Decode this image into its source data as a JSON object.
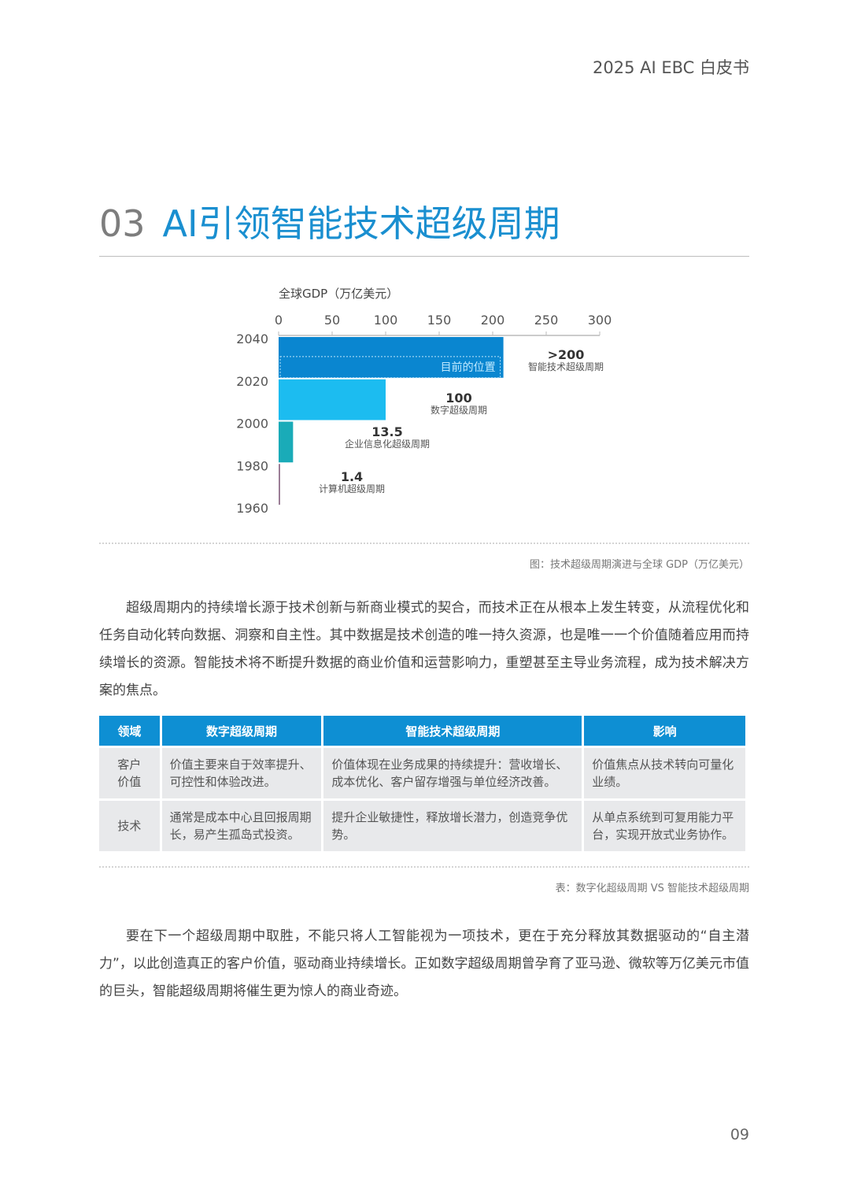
{
  "header": {
    "title": "2025 AI EBC 白皮书"
  },
  "section": {
    "number": "03",
    "title": "AI引领智能技术超级周期"
  },
  "chart_data": {
    "type": "bar",
    "orientation": "horizontal",
    "xlabel": "全球GDP（万亿美元）",
    "xlim": [
      0,
      300
    ],
    "xticks": [
      0,
      50,
      100,
      150,
      200,
      250,
      300
    ],
    "yticks": [
      "2040",
      "2020",
      "2000",
      "1980",
      "1960"
    ],
    "series": [
      {
        "name": "智能技术超级周期",
        "period": [
          2020,
          2040
        ],
        "value": 210,
        "label": ">200",
        "color": "#0a86d0"
      },
      {
        "name": "数字超级周期",
        "period": [
          2000,
          2020
        ],
        "value": 100,
        "label": "100",
        "color": "#1cbcf0"
      },
      {
        "name": "企业信息化超级周期",
        "period": [
          1980,
          2000
        ],
        "value": 13.5,
        "label": "13.5",
        "color": "#1aabb8"
      },
      {
        "name": "计算机超级周期",
        "period": [
          1960,
          1980
        ],
        "value": 1.4,
        "label": "1.4",
        "color": "#9b7d96"
      }
    ],
    "annotation": "目前的位置"
  },
  "figure_caption": "图：技术超级周期演进与全球 GDP（万亿美元）",
  "paragraph1": "超级周期内的持续增长源于技术创新与新商业模式的契合，而技术正在从根本上发生转变，从流程优化和任务自动化转向数据、洞察和自主性。其中数据是技术创造的唯一持久资源，也是唯一一个价值随着应用而持续增长的资源。智能技术将不断提升数据的商业价值和运营影响力，重塑甚至主导业务流程，成为技术解决方案的焦点。",
  "table": {
    "headers": [
      "领域",
      "数字超级周期",
      "智能技术超级周期",
      "影响"
    ],
    "rows": [
      [
        "客户价值",
        "价值主要来自于效率提升、可控性和体验改进。",
        "价值体现在业务成果的持续提升：营收增长、成本优化、客户留存增强与单位经济改善。",
        "价值焦点从技术转向可量化业绩。"
      ],
      [
        "技术",
        "通常是成本中心且回报周期长，易产生孤岛式投资。",
        "提升企业敏捷性，释放增长潜力，创造竞争优势。",
        "从单点系统到可复用能力平台，实现开放式业务协作。"
      ]
    ]
  },
  "table_caption": "表：数字化超级周期 VS 智能技术超级周期",
  "paragraph2": "要在下一个超级周期中取胜，不能只将人工智能视为一项技术，更在于充分释放其数据驱动的“自主潜力”，以此创造真正的客户价值，驱动商业持续增长。正如数字超级周期曾孕育了亚马逊、微软等万亿美元市值的巨头，智能超级周期将催生更为惊人的商业奇迹。",
  "page_number": "09"
}
